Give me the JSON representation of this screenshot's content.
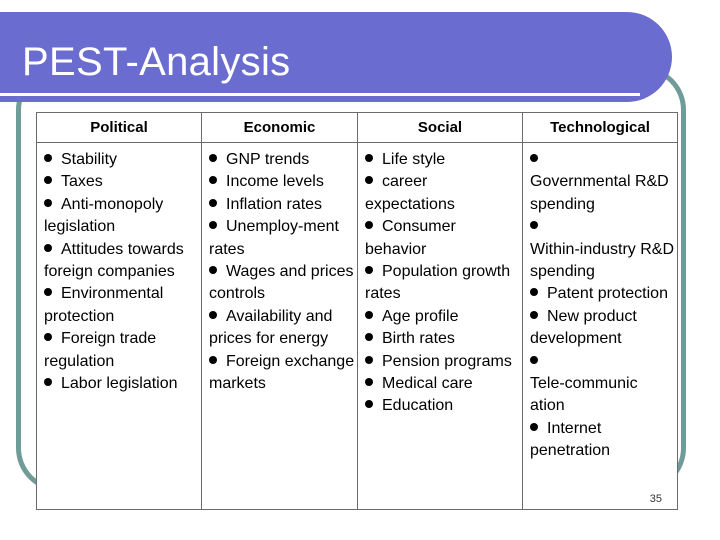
{
  "slide": {
    "title": "PEST-Analysis",
    "page_number": "35",
    "colors": {
      "title_bar": "#6a6ccf",
      "frame": "#6f9b98",
      "title_text": "#ffffff"
    }
  },
  "table": {
    "columns": [
      {
        "header": "Political",
        "items": [
          "Stability",
          "Taxes",
          "Anti-monopoly legislation",
          "Attitudes towards foreign companies",
          "Environmental protection",
          "Foreign trade regulation",
          "Labor legislation"
        ]
      },
      {
        "header": "Economic",
        "items": [
          "GNP trends",
          "Income levels",
          "Inflation rates",
          "Unemploy-ment rates",
          "Wages and prices controls",
          "Availability and prices for energy",
          "Foreign exchange markets"
        ]
      },
      {
        "header": "Social",
        "items": [
          "Life style",
          "career expectations",
          "Consumer behavior",
          "Population growth rates",
          "Age profile",
          "Birth rates",
          "Pension programs",
          "Medical care",
          "Education"
        ]
      },
      {
        "header": "Technological",
        "items": [
          "Governmental R&D spending",
          "Within-industry R&D spending",
          "Patent protection",
          "New product development",
          "Tele-communic ation",
          "Internet penetration"
        ]
      }
    ]
  }
}
